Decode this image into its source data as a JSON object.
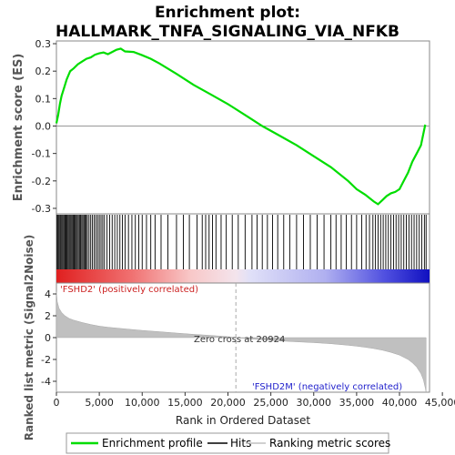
{
  "title_line1": "Enrichment plot:",
  "title_line2": "HALLMARK_TNFA_SIGNALING_VIA_NFKB",
  "chart_data": [
    {
      "type": "line",
      "panel": "enrichment-profile",
      "ylabel": "Enrichment score (ES)",
      "xlim": [
        0,
        43500
      ],
      "ylim": [
        -0.32,
        0.31
      ],
      "yticks": [
        -0.3,
        -0.2,
        -0.1,
        0.0,
        0.1,
        0.2,
        0.3
      ],
      "ytick_labels": [
        "-0.3",
        "-0.2",
        "-0.1",
        "0.0",
        "0.1",
        "0.2",
        "0.3"
      ],
      "zero_line": true,
      "color": "#00cc00",
      "series": [
        {
          "name": "Enrichment profile",
          "x": [
            0,
            200,
            400,
            600,
            900,
            1200,
            1600,
            2000,
            2500,
            3000,
            3500,
            4000,
            4500,
            5000,
            5500,
            6000,
            6500,
            7000,
            7500,
            8000,
            9000,
            10000,
            11000,
            12000,
            14000,
            16000,
            18000,
            20000,
            22000,
            24000,
            26000,
            28000,
            30000,
            32000,
            34000,
            35000,
            36000,
            37000,
            37500,
            38000,
            38500,
            39000,
            39500,
            40000,
            40500,
            41000,
            41500,
            42000,
            42500,
            43000
          ],
          "y": [
            0.01,
            0.04,
            0.08,
            0.11,
            0.14,
            0.17,
            0.2,
            0.21,
            0.225,
            0.235,
            0.245,
            0.25,
            0.26,
            0.265,
            0.268,
            0.262,
            0.27,
            0.278,
            0.282,
            0.272,
            0.27,
            0.258,
            0.245,
            0.228,
            0.19,
            0.15,
            0.115,
            0.08,
            0.04,
            0.0,
            -0.035,
            -0.07,
            -0.11,
            -0.15,
            -0.2,
            -0.23,
            -0.25,
            -0.275,
            -0.285,
            -0.27,
            -0.255,
            -0.245,
            -0.24,
            -0.23,
            -0.2,
            -0.17,
            -0.13,
            -0.1,
            -0.07,
            0.005
          ]
        }
      ]
    },
    {
      "type": "scatter",
      "panel": "hits",
      "legend_label": "Hits",
      "x": [
        80,
        180,
        290,
        410,
        520,
        640,
        760,
        880,
        1000,
        1110,
        1230,
        1350,
        1470,
        1590,
        1710,
        1830,
        1950,
        2070,
        2190,
        2310,
        2430,
        2560,
        2690,
        2820,
        2950,
        3080,
        3210,
        3340,
        3470,
        3600,
        3800,
        4000,
        4200,
        4400,
        4600,
        4800,
        5000,
        5200,
        5400,
        5600,
        5900,
        6200,
        6500,
        6800,
        7100,
        7400,
        7700,
        8000,
        8400,
        8800,
        9200,
        9600,
        10000,
        10500,
        11000,
        11500,
        12200,
        13000,
        14000,
        14800,
        15500,
        16400,
        17000,
        17400,
        17800,
        18200,
        18600,
        19200,
        19800,
        20500,
        21200,
        22000,
        22800,
        23400,
        24000,
        24600,
        25200,
        25800,
        26500,
        27200,
        28000,
        28800,
        29600,
        30400,
        31200,
        32000,
        32600,
        33200,
        33800,
        34400,
        35000,
        35600,
        36100,
        36500,
        36900,
        37200,
        37500,
        37800,
        38100,
        38400,
        38700,
        39000,
        39300,
        39600,
        39900,
        40200,
        40500,
        40800,
        41100,
        41400,
        41700,
        42000,
        42300,
        42600,
        42900,
        43100
      ]
    },
    {
      "type": "area",
      "panel": "ranked-list-metric",
      "ylabel": "Ranked list metric (Signal2Noise)",
      "xlabel": "Rank in Ordered Dataset",
      "xlim": [
        0,
        43500
      ],
      "ylim": [
        -5,
        5
      ],
      "xticks": [
        0,
        5000,
        10000,
        15000,
        20000,
        25000,
        30000,
        35000,
        40000,
        45000
      ],
      "xtick_labels": [
        "0",
        "5,000",
        "10,000",
        "15,000",
        "20,000",
        "25,000",
        "30,000",
        "35,000",
        "40,000",
        "45,000"
      ],
      "yticks": [
        -4,
        -2,
        0,
        2,
        4
      ],
      "ytick_labels": [
        "-4",
        "-2",
        "0",
        "2",
        "4"
      ],
      "color": "#c0c0c0",
      "series": [
        {
          "name": "Ranking metric scores",
          "x": [
            0,
            100,
            300,
            600,
            1000,
            1500,
            2000,
            3000,
            4000,
            5000,
            6000,
            8000,
            10000,
            12000,
            14000,
            16000,
            18000,
            20000,
            20924,
            22000,
            24000,
            26000,
            28000,
            30000,
            32000,
            34000,
            35000,
            36000,
            37000,
            38000,
            39000,
            40000,
            41000,
            41500,
            42000,
            42500,
            42800,
            43000,
            43100
          ],
          "y": [
            4.2,
            3.3,
            2.7,
            2.3,
            2.0,
            1.75,
            1.6,
            1.38,
            1.2,
            1.05,
            0.95,
            0.8,
            0.66,
            0.54,
            0.42,
            0.3,
            0.2,
            0.08,
            0.0,
            -0.08,
            -0.2,
            -0.3,
            -0.38,
            -0.46,
            -0.56,
            -0.7,
            -0.78,
            -0.88,
            -1.0,
            -1.15,
            -1.35,
            -1.6,
            -2.0,
            -2.3,
            -2.7,
            -3.3,
            -3.9,
            -4.6,
            -5.0
          ]
        }
      ],
      "annotations": {
        "zero_cross": "Zero cross at 20924",
        "positive": "'FSHD2' (positively correlated)",
        "negative": "'FSHD2M' (negatively correlated)"
      }
    }
  ],
  "legend": {
    "items": [
      {
        "label": "Enrichment profile",
        "color": "#00cc00"
      },
      {
        "label": "Hits",
        "color": "#000000"
      },
      {
        "label": "Ranking metric scores",
        "color": "#c0c0c0"
      }
    ]
  }
}
